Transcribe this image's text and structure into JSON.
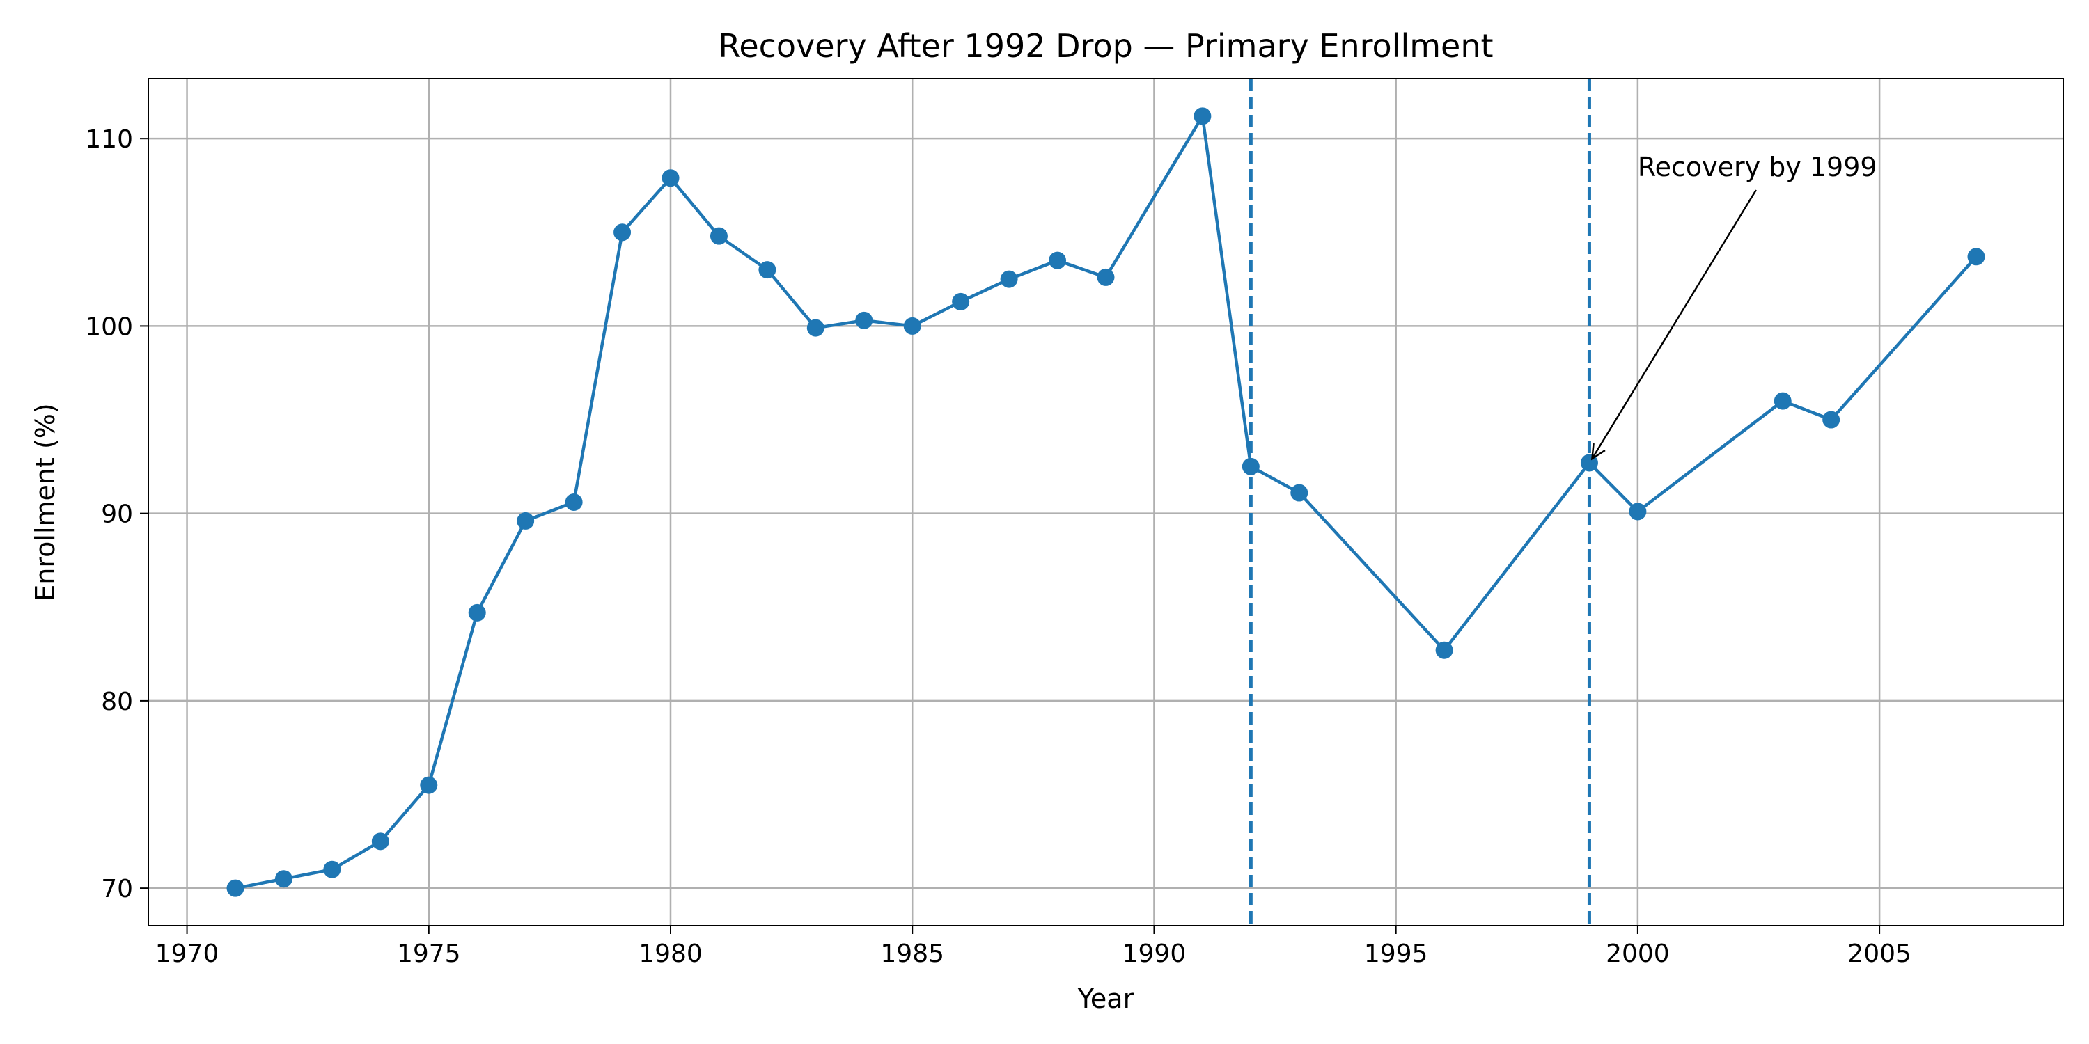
{
  "chart_data": {
    "type": "line",
    "title": "Recovery After 1992 Drop — Primary Enrollment",
    "xlabel": "Year",
    "ylabel": "Enrollment (%)",
    "xlim": [
      1969.2,
      2008.8
    ],
    "ylim": [
      68.0,
      113.2
    ],
    "grid": true,
    "x_ticks": [
      1970,
      1975,
      1980,
      1985,
      1990,
      1995,
      2000,
      2005
    ],
    "y_ticks": [
      70,
      80,
      90,
      100,
      110
    ],
    "line_color": "#1f77b4",
    "series": [
      {
        "x": [
          1971,
          1972,
          1973,
          1974,
          1975,
          1976,
          1977,
          1978,
          1979,
          1980,
          1981,
          1982,
          1983,
          1984,
          1985,
          1986,
          1987,
          1988,
          1989,
          1991,
          1992,
          1993,
          1996,
          1999,
          2000,
          2003,
          2004,
          2007
        ],
        "y": [
          70.0,
          70.5,
          71.0,
          72.5,
          75.5,
          84.7,
          89.6,
          90.6,
          105.0,
          107.9,
          104.8,
          103.0,
          99.9,
          100.3,
          100.0,
          101.3,
          102.5,
          103.5,
          102.6,
          111.2,
          92.5,
          91.1,
          82.7,
          92.7,
          90.1,
          96.0,
          95.0,
          103.7
        ]
      }
    ],
    "vlines": [
      1992,
      1999
    ],
    "annotations": [
      {
        "text": "Recovery by 1999",
        "x": 1999,
        "y": 92.7,
        "text_x": 2000,
        "text_y": 108.0
      }
    ]
  }
}
